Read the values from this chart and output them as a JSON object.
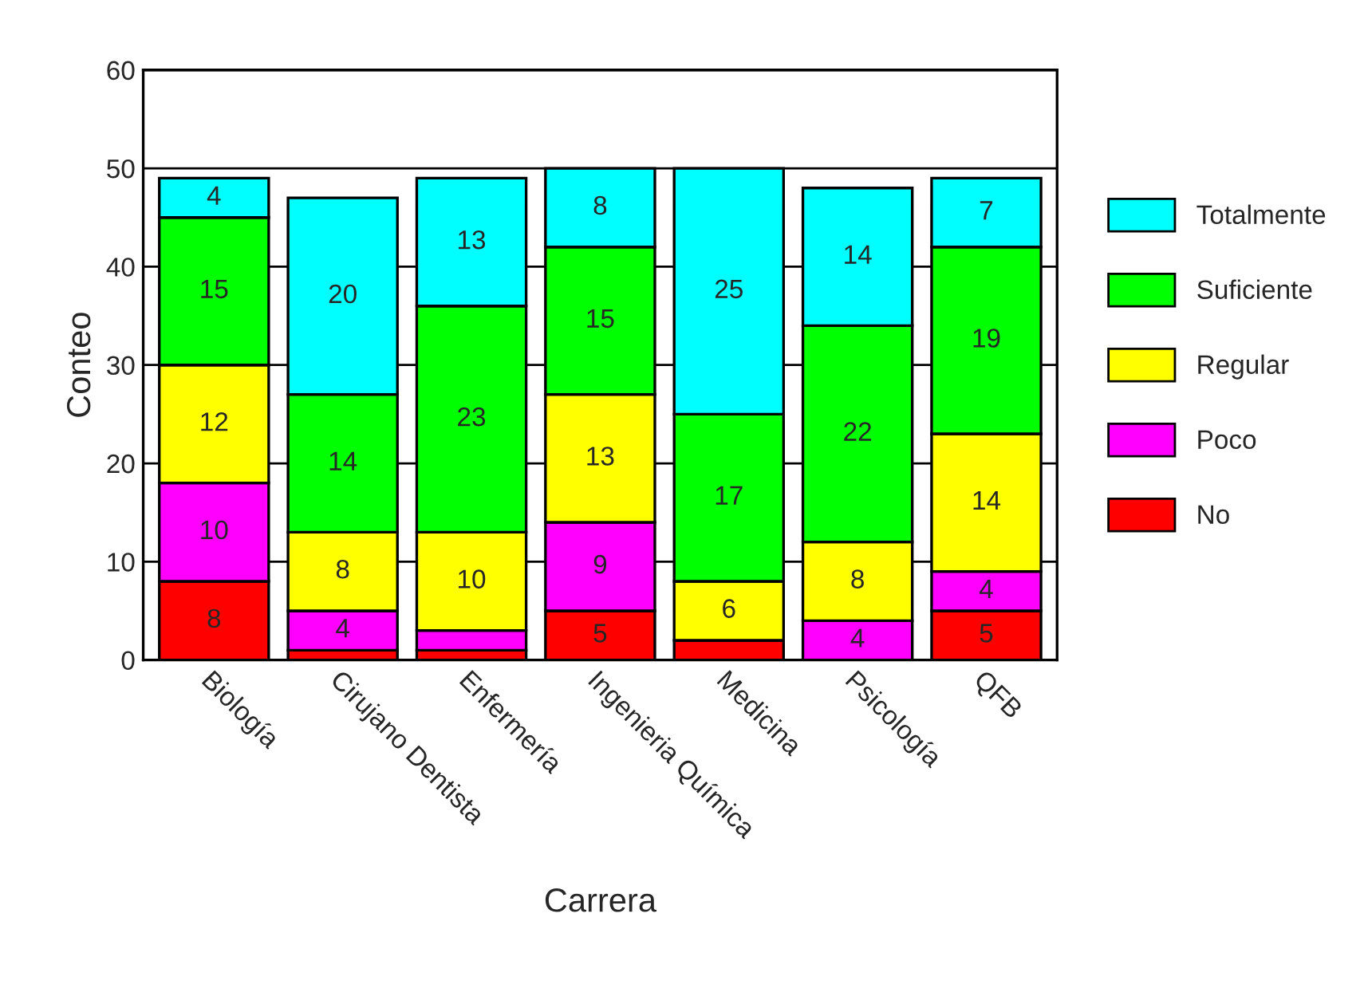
{
  "chart_data": {
    "type": "bar",
    "stacked": true,
    "xlabel": "Carrera",
    "ylabel": "Conteo",
    "categories": [
      "Biología",
      "Cirujano Dentista",
      "Enfermería",
      "Ingenieria Química",
      "Medicina",
      "Psicología",
      "QFB"
    ],
    "series": [
      {
        "name": "No",
        "color": "#ff0000",
        "values": [
          8,
          1,
          1,
          5,
          2,
          0,
          5
        ],
        "value_labels": [
          "8",
          null,
          null,
          "5",
          null,
          null,
          "5"
        ]
      },
      {
        "name": "Poco",
        "color": "#ff00ff",
        "values": [
          10,
          4,
          2,
          9,
          0,
          4,
          4
        ],
        "value_labels": [
          "10",
          "4",
          null,
          "9",
          null,
          "4",
          "4"
        ]
      },
      {
        "name": "Regular",
        "color": "#ffff00",
        "values": [
          12,
          8,
          10,
          13,
          6,
          8,
          14
        ],
        "value_labels": [
          "12",
          "8",
          "10",
          "13",
          "6",
          "8",
          "14"
        ]
      },
      {
        "name": "Suficiente",
        "color": "#00ff00",
        "values": [
          15,
          14,
          23,
          15,
          17,
          22,
          19
        ],
        "value_labels": [
          "15",
          "14",
          "23",
          "15",
          "17",
          "22",
          "19"
        ]
      },
      {
        "name": "Totalmente",
        "color": "#00ffff",
        "values": [
          4,
          20,
          13,
          8,
          25,
          14,
          7
        ],
        "value_labels": [
          "4",
          "20",
          "13",
          "8",
          "25",
          "14",
          "7"
        ]
      }
    ],
    "ylim": [
      0,
      60
    ],
    "yticks": [
      0,
      10,
      20,
      30,
      40,
      50,
      60
    ],
    "grid": "y",
    "legend": "right"
  }
}
